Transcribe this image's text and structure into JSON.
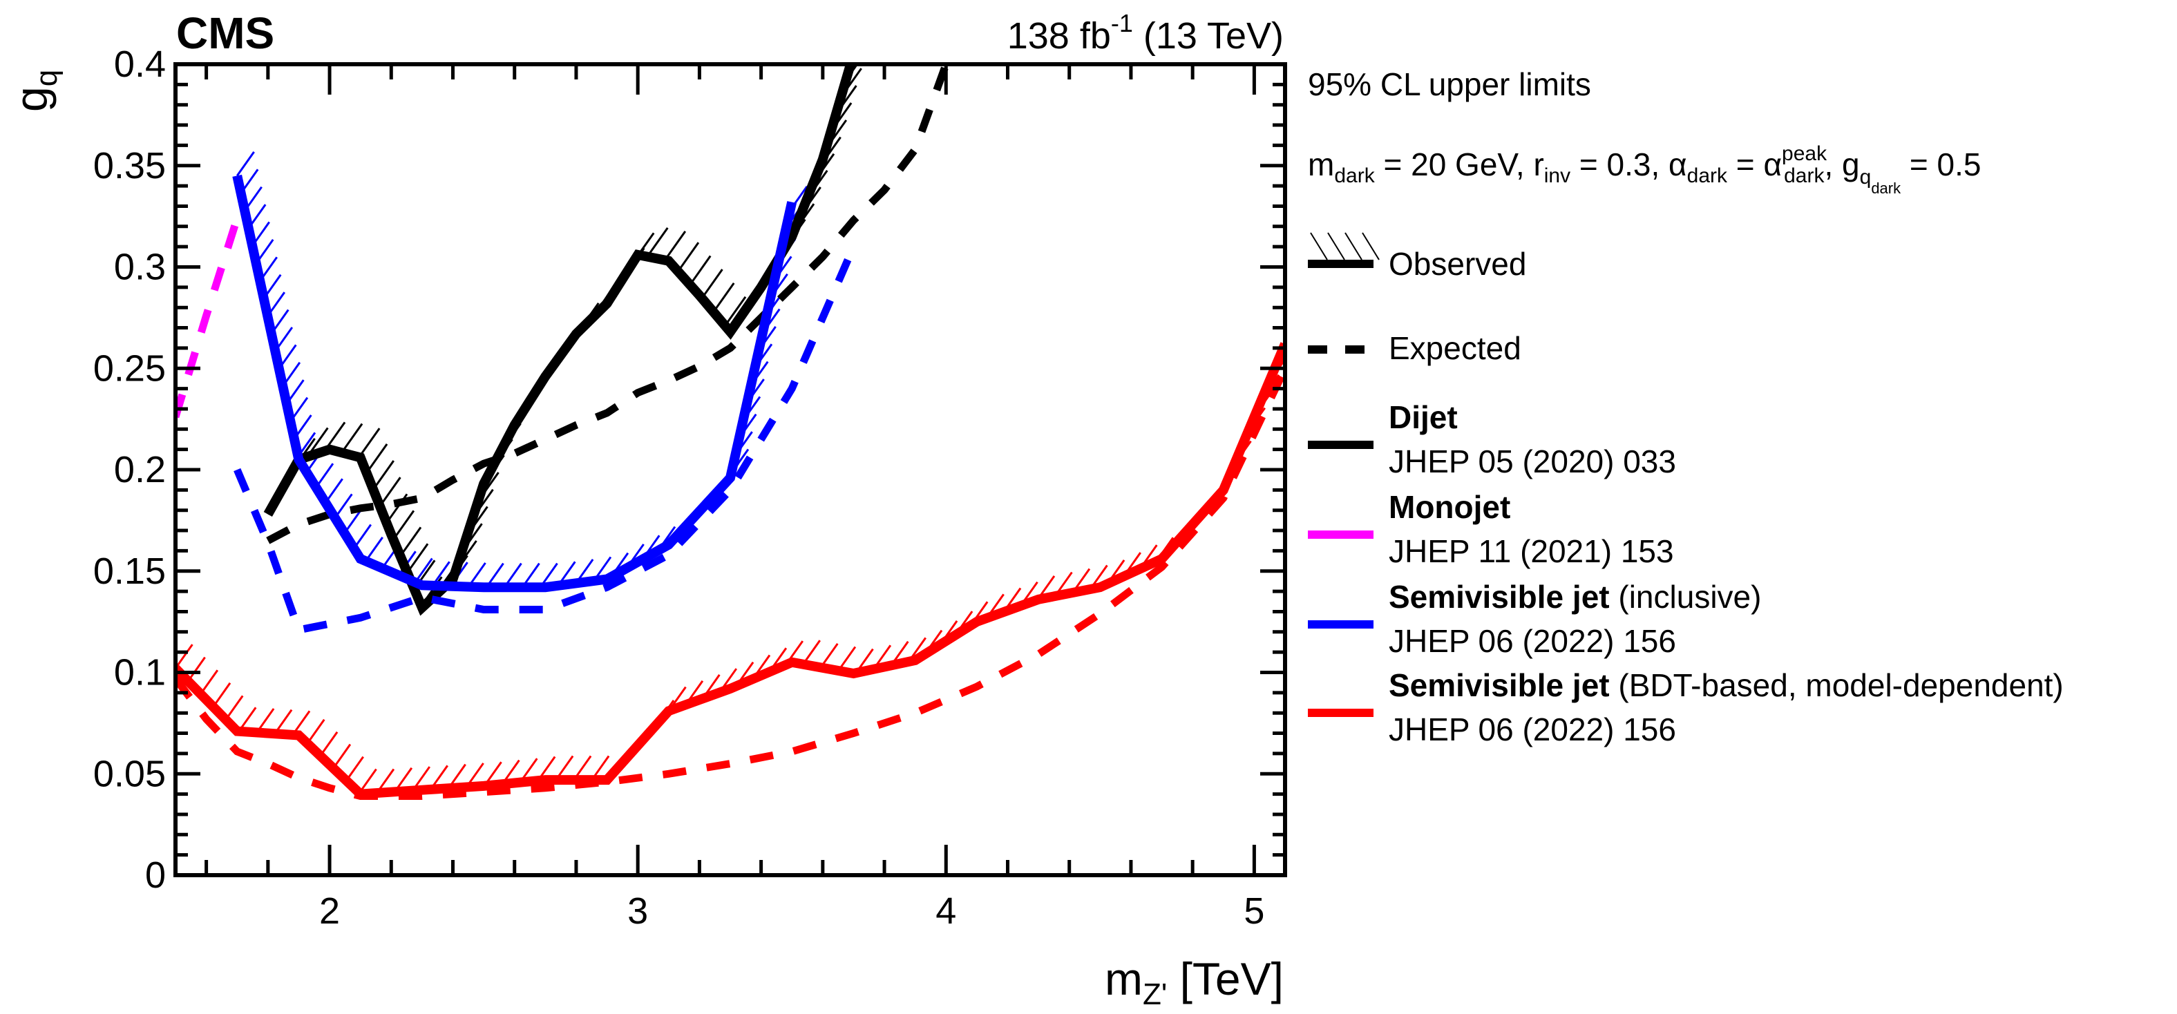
{
  "chart_data": {
    "type": "line",
    "experiment_label": "CMS",
    "lumi_label": {
      "value": "138 fb",
      "sup": "-1",
      "energy": " (13 TeV)"
    },
    "xlabel": {
      "main": "m",
      "sub": "Z'",
      "unit": " [TeV]"
    },
    "ylabel": {
      "main": "g",
      "sub": "q"
    },
    "xlim": [
      1.5,
      5.1
    ],
    "ylim": [
      0,
      0.4
    ],
    "x_major_ticks": [
      2,
      3,
      4,
      5
    ],
    "x_minor_step": 0.2,
    "y_major_ticks": [
      0,
      0.05,
      0.1,
      0.15,
      0.2,
      0.25,
      0.3,
      0.35,
      0.4
    ],
    "y_tick_labels": [
      "0",
      "0.05",
      "0.1",
      "0.15",
      "0.2",
      "0.25",
      "0.3",
      "0.35",
      "0.4"
    ],
    "y_minor_step": 0.01,
    "grid": false,
    "legend_placement": "right-outside",
    "legend": {
      "header": "95% CL upper limits",
      "params": "m_dark = 20 GeV, r_inv = 0.3, alpha_dark = alpha_dark^peak, g_q_dark = 0.5",
      "observed_label": "Observed",
      "expected_label": "Expected",
      "entries": [
        {
          "name": "Dijet",
          "qualifier": "",
          "ref": "JHEP 05 (2020) 033",
          "color": "#000000"
        },
        {
          "name": "Monojet",
          "qualifier": "",
          "ref": "JHEP 11 (2021) 153",
          "color": "#ff00ff"
        },
        {
          "name": "Semivisible jet",
          "qualifier": " (inclusive)",
          "ref": "JHEP 06 (2022) 156",
          "color": "#0000ff"
        },
        {
          "name": "Semivisible jet",
          "qualifier": " (BDT-based, model-dependent)",
          "ref": "JHEP 06 (2022) 156",
          "color": "#ff0000"
        }
      ]
    },
    "series": [
      {
        "name": "Dijet observed",
        "analysis": "Dijet",
        "kind": "observed",
        "color": "#000000",
        "hatched": true,
        "x": [
          1.8,
          1.9,
          2.0,
          2.1,
          2.2,
          2.3,
          2.4,
          2.5,
          2.6,
          2.7,
          2.8,
          2.9,
          3.0,
          3.1,
          3.2,
          3.3,
          3.4,
          3.5,
          3.6,
          3.7
        ],
        "y": [
          0.178,
          0.205,
          0.21,
          0.206,
          0.168,
          0.132,
          0.146,
          0.193,
          0.222,
          0.246,
          0.267,
          0.282,
          0.306,
          0.303,
          0.286,
          0.268,
          0.29,
          0.315,
          0.353,
          0.405
        ]
      },
      {
        "name": "Dijet expected",
        "analysis": "Dijet",
        "kind": "expected",
        "color": "#000000",
        "x": [
          1.8,
          1.9,
          2.0,
          2.1,
          2.2,
          2.3,
          2.4,
          2.5,
          2.6,
          2.7,
          2.8,
          2.9,
          3.0,
          3.1,
          3.2,
          3.3,
          3.4,
          3.5,
          3.6,
          3.7,
          3.8,
          3.9,
          4.0
        ],
        "y": [
          0.165,
          0.173,
          0.178,
          0.181,
          0.183,
          0.186,
          0.195,
          0.203,
          0.208,
          0.215,
          0.222,
          0.228,
          0.238,
          0.244,
          0.251,
          0.26,
          0.275,
          0.29,
          0.305,
          0.323,
          0.338,
          0.358,
          0.4
        ]
      },
      {
        "name": "Monojet expected",
        "analysis": "Monojet",
        "kind": "expected",
        "color": "#ff00ff",
        "x": [
          1.5,
          1.6,
          1.7
        ],
        "y": [
          0.226,
          0.276,
          0.324
        ]
      },
      {
        "name": "Semivisible jet (inclusive) observed",
        "analysis": "Semivisible jet (inclusive)",
        "kind": "observed",
        "color": "#0000ff",
        "hatched": true,
        "x": [
          1.7,
          1.9,
          2.1,
          2.3,
          2.5,
          2.7,
          2.9,
          3.1,
          3.3,
          3.5
        ],
        "y": [
          0.345,
          0.205,
          0.156,
          0.143,
          0.142,
          0.142,
          0.146,
          0.163,
          0.196,
          0.332
        ]
      },
      {
        "name": "Semivisible jet (inclusive) expected",
        "analysis": "Semivisible jet (inclusive)",
        "kind": "expected",
        "color": "#0000ff",
        "x": [
          1.7,
          1.8,
          1.9,
          2.1,
          2.3,
          2.5,
          2.7,
          2.9,
          3.1,
          3.3,
          3.5,
          3.7
        ],
        "y": [
          0.2,
          0.164,
          0.121,
          0.127,
          0.137,
          0.131,
          0.131,
          0.142,
          0.158,
          0.19,
          0.24,
          0.31
        ]
      },
      {
        "name": "Semivisible jet (BDT) observed",
        "analysis": "Semivisible jet (BDT-based, model-dependent)",
        "kind": "observed",
        "color": "#ff0000",
        "hatched": true,
        "x": [
          1.5,
          1.7,
          1.9,
          2.1,
          2.3,
          2.5,
          2.7,
          2.9,
          3.1,
          3.3,
          3.5,
          3.7,
          3.9,
          4.1,
          4.3,
          4.5,
          4.7,
          4.9,
          5.1
        ],
        "y": [
          0.102,
          0.071,
          0.069,
          0.04,
          0.042,
          0.044,
          0.047,
          0.047,
          0.081,
          0.092,
          0.105,
          0.0995,
          0.106,
          0.125,
          0.136,
          0.142,
          0.156,
          0.19,
          0.262
        ]
      },
      {
        "name": "Semivisible jet (BDT) expected",
        "analysis": "Semivisible jet (BDT-based, model-dependent)",
        "kind": "expected",
        "color": "#ff0000",
        "x": [
          1.5,
          1.6,
          1.7,
          1.8,
          1.9,
          2.0,
          2.1,
          2.3,
          2.5,
          2.7,
          2.9,
          3.1,
          3.3,
          3.5,
          3.7,
          3.9,
          4.1,
          4.3,
          4.5,
          4.7,
          4.9,
          5.1
        ],
        "y": [
          0.097,
          0.077,
          0.061,
          0.055,
          0.048,
          0.043,
          0.039,
          0.039,
          0.041,
          0.043,
          0.046,
          0.05,
          0.055,
          0.061,
          0.07,
          0.08,
          0.093,
          0.109,
          0.129,
          0.152,
          0.186,
          0.25
        ]
      }
    ]
  }
}
